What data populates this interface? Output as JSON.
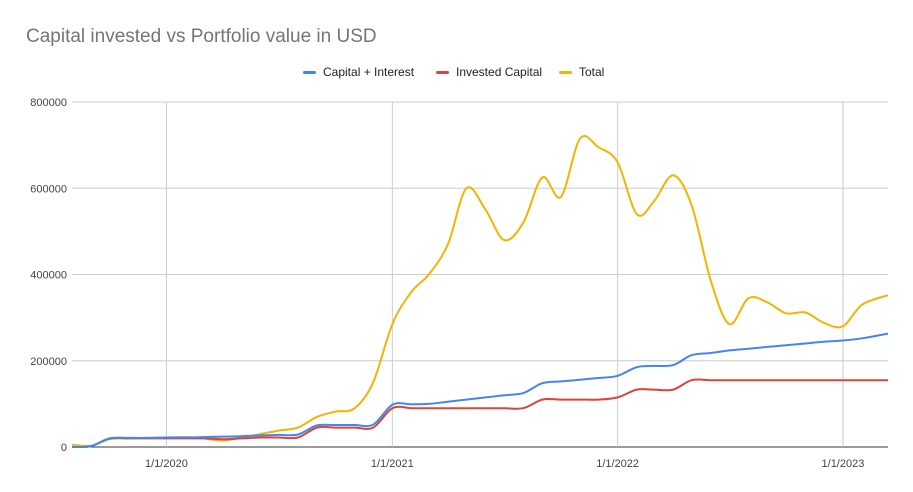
{
  "chart_data": {
    "type": "line",
    "title": "Capital invested vs Portfolio value in USD",
    "xlabel": "",
    "ylabel": "",
    "x_axis": {
      "type": "date",
      "range": [
        "2019-08-01",
        "2023-03-15"
      ],
      "ticks": [
        "2020-01-01",
        "2021-01-01",
        "2022-01-01",
        "2023-01-01"
      ],
      "tick_labels": [
        "1/1/2020",
        "1/1/2021",
        "1/1/2022",
        "1/1/2023"
      ]
    },
    "y_axis": {
      "range": [
        0,
        800000
      ],
      "ticks": [
        0,
        200000,
        400000,
        600000,
        800000
      ],
      "tick_labels": [
        "0",
        "200000",
        "400000",
        "600000",
        "800000"
      ]
    },
    "grid": true,
    "legend_position": "top-center",
    "series": [
      {
        "name": "Capital + Interest",
        "color": "#4285f4",
        "points": [
          [
            "2019-08-01",
            0
          ],
          [
            "2019-09-01",
            2000
          ],
          [
            "2019-10-01",
            20000
          ],
          [
            "2019-11-01",
            21000
          ],
          [
            "2019-12-01",
            21000
          ],
          [
            "2020-01-01",
            22000
          ],
          [
            "2020-02-01",
            22000
          ],
          [
            "2020-03-01",
            23000
          ],
          [
            "2020-04-01",
            24000
          ],
          [
            "2020-05-01",
            25000
          ],
          [
            "2020-06-01",
            27000
          ],
          [
            "2020-07-01",
            28000
          ],
          [
            "2020-08-01",
            29000
          ],
          [
            "2020-09-01",
            50000
          ],
          [
            "2020-10-01",
            51000
          ],
          [
            "2020-11-01",
            51000
          ],
          [
            "2020-12-01",
            52000
          ],
          [
            "2021-01-01",
            98000
          ],
          [
            "2021-02-01",
            99000
          ],
          [
            "2021-03-01",
            100000
          ],
          [
            "2021-04-01",
            105000
          ],
          [
            "2021-05-01",
            110000
          ],
          [
            "2021-06-01",
            115000
          ],
          [
            "2021-07-01",
            120000
          ],
          [
            "2021-08-01",
            125000
          ],
          [
            "2021-09-01",
            148000
          ],
          [
            "2021-10-01",
            152000
          ],
          [
            "2021-11-01",
            156000
          ],
          [
            "2021-12-01",
            160000
          ],
          [
            "2022-01-01",
            165000
          ],
          [
            "2022-02-01",
            185000
          ],
          [
            "2022-03-01",
            188000
          ],
          [
            "2022-04-01",
            190000
          ],
          [
            "2022-05-01",
            213000
          ],
          [
            "2022-06-01",
            218000
          ],
          [
            "2022-07-01",
            224000
          ],
          [
            "2022-08-01",
            228000
          ],
          [
            "2022-09-01",
            232000
          ],
          [
            "2022-10-01",
            236000
          ],
          [
            "2022-11-01",
            240000
          ],
          [
            "2022-12-01",
            244000
          ],
          [
            "2023-01-01",
            247000
          ],
          [
            "2023-02-01",
            252000
          ],
          [
            "2023-03-15",
            263000
          ]
        ]
      },
      {
        "name": "Invested Capital",
        "color": "#db4437",
        "points": [
          [
            "2019-08-01",
            0
          ],
          [
            "2019-09-01",
            2000
          ],
          [
            "2019-10-01",
            20000
          ],
          [
            "2019-11-01",
            20000
          ],
          [
            "2019-12-01",
            20000
          ],
          [
            "2020-01-01",
            20000
          ],
          [
            "2020-02-01",
            20000
          ],
          [
            "2020-03-01",
            20000
          ],
          [
            "2020-04-01",
            18000
          ],
          [
            "2020-05-01",
            20000
          ],
          [
            "2020-06-01",
            22000
          ],
          [
            "2020-07-01",
            22000
          ],
          [
            "2020-08-01",
            22000
          ],
          [
            "2020-09-01",
            45000
          ],
          [
            "2020-10-01",
            45000
          ],
          [
            "2020-11-01",
            45000
          ],
          [
            "2020-12-01",
            45000
          ],
          [
            "2021-01-01",
            90000
          ],
          [
            "2021-02-01",
            90000
          ],
          [
            "2021-03-01",
            90000
          ],
          [
            "2021-04-01",
            90000
          ],
          [
            "2021-05-01",
            90000
          ],
          [
            "2021-06-01",
            90000
          ],
          [
            "2021-07-01",
            90000
          ],
          [
            "2021-08-01",
            90000
          ],
          [
            "2021-09-01",
            110000
          ],
          [
            "2021-10-01",
            110000
          ],
          [
            "2021-11-01",
            110000
          ],
          [
            "2021-12-01",
            110000
          ],
          [
            "2022-01-01",
            115000
          ],
          [
            "2022-02-01",
            133000
          ],
          [
            "2022-03-01",
            133000
          ],
          [
            "2022-04-01",
            133000
          ],
          [
            "2022-05-01",
            155000
          ],
          [
            "2022-06-01",
            155000
          ],
          [
            "2022-07-01",
            155000
          ],
          [
            "2022-08-01",
            155000
          ],
          [
            "2022-09-01",
            155000
          ],
          [
            "2022-10-01",
            155000
          ],
          [
            "2022-11-01",
            155000
          ],
          [
            "2022-12-01",
            155000
          ],
          [
            "2023-01-01",
            155000
          ],
          [
            "2023-02-01",
            155000
          ],
          [
            "2023-03-15",
            155000
          ]
        ]
      },
      {
        "name": "Total",
        "color": "#f4b400",
        "points": [
          [
            "2019-08-01",
            5000
          ],
          [
            "2019-09-01",
            3000
          ],
          [
            "2019-10-01",
            18000
          ],
          [
            "2019-11-01",
            20000
          ],
          [
            "2019-12-01",
            21000
          ],
          [
            "2020-01-01",
            22000
          ],
          [
            "2020-02-01",
            23000
          ],
          [
            "2020-03-01",
            20000
          ],
          [
            "2020-04-01",
            15000
          ],
          [
            "2020-05-01",
            22000
          ],
          [
            "2020-06-01",
            30000
          ],
          [
            "2020-07-01",
            38000
          ],
          [
            "2020-08-01",
            45000
          ],
          [
            "2020-09-01",
            70000
          ],
          [
            "2020-10-01",
            82000
          ],
          [
            "2020-11-01",
            90000
          ],
          [
            "2020-12-01",
            150000
          ],
          [
            "2021-01-01",
            285000
          ],
          [
            "2021-02-01",
            360000
          ],
          [
            "2021-03-01",
            400000
          ],
          [
            "2021-04-01",
            470000
          ],
          [
            "2021-05-01",
            600000
          ],
          [
            "2021-06-01",
            550000
          ],
          [
            "2021-07-01",
            480000
          ],
          [
            "2021-08-01",
            520000
          ],
          [
            "2021-09-01",
            625000
          ],
          [
            "2021-10-01",
            580000
          ],
          [
            "2021-11-01",
            715000
          ],
          [
            "2021-12-01",
            695000
          ],
          [
            "2022-01-01",
            660000
          ],
          [
            "2022-02-01",
            540000
          ],
          [
            "2022-03-01",
            570000
          ],
          [
            "2022-04-01",
            630000
          ],
          [
            "2022-05-01",
            560000
          ],
          [
            "2022-06-01",
            385000
          ],
          [
            "2022-07-01",
            285000
          ],
          [
            "2022-08-01",
            345000
          ],
          [
            "2022-09-01",
            335000
          ],
          [
            "2022-10-01",
            310000
          ],
          [
            "2022-11-01",
            312000
          ],
          [
            "2022-12-01",
            288000
          ],
          [
            "2023-01-01",
            280000
          ],
          [
            "2023-02-01",
            330000
          ],
          [
            "2023-03-15",
            352000
          ]
        ]
      }
    ]
  }
}
